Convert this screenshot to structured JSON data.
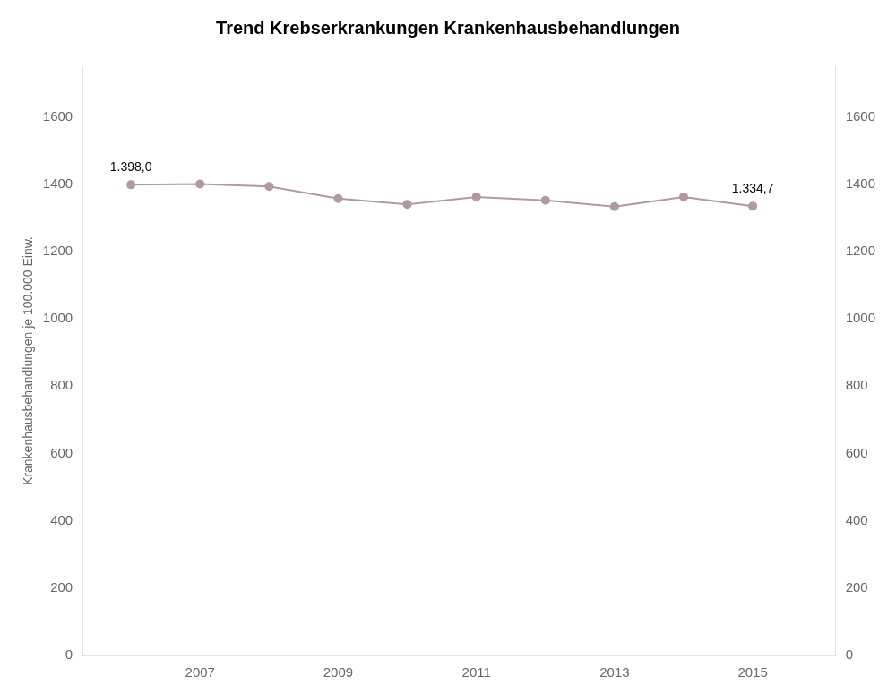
{
  "chart_data": {
    "type": "line",
    "title": "Trend Krebserkrankungen Krankenhausbehandlungen",
    "ylabel": "Krankenhausbehandlungen je 100.000 Einw.",
    "x": [
      2006,
      2007,
      2008,
      2009,
      2010,
      2011,
      2012,
      2013,
      2014,
      2015
    ],
    "values": [
      1398.0,
      1400.5,
      1393.0,
      1357.0,
      1340.0,
      1362.0,
      1352.0,
      1333.0,
      1362.0,
      1334.7
    ],
    "color": "#b09aa0",
    "marker": "circle",
    "xlim": [
      2005.3,
      2016.2
    ],
    "xticks": [
      2007,
      2009,
      2011,
      2013,
      2015
    ],
    "ylim": [
      0,
      1750
    ],
    "yticks": [
      0,
      200,
      400,
      600,
      800,
      1000,
      1200,
      1400,
      1600
    ],
    "y2lim": [
      0,
      1750
    ],
    "y2ticks": [
      0,
      200,
      400,
      600,
      800,
      1000,
      1200,
      1400,
      1600
    ],
    "grid": false,
    "annotations": [
      {
        "text": "1.398,0",
        "x": 2006,
        "y": 1398.0
      },
      {
        "text": "1.334,7",
        "x": 2015,
        "y": 1334.7
      }
    ]
  }
}
